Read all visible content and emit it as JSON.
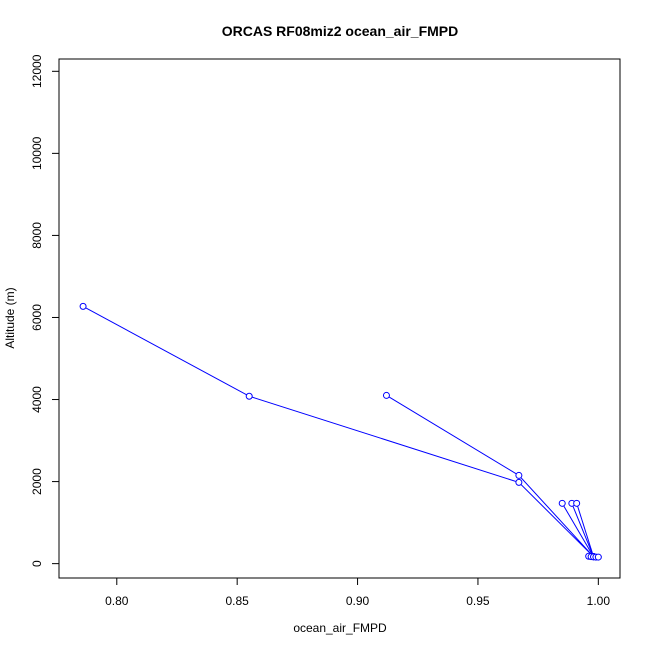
{
  "chart_data": {
    "type": "line",
    "title": "ORCAS RF08miz2 ocean_air_FMPD",
    "xlabel": "ocean_air_FMPD",
    "ylabel": "Altitude (m)",
    "xlim": [
      0.776,
      1.009
    ],
    "ylim": [
      -350,
      12300
    ],
    "x_ticks": [
      0.8,
      0.85,
      0.9,
      0.95,
      1.0
    ],
    "x_tick_labels": [
      "0.80",
      "0.85",
      "0.90",
      "0.95",
      "1.00"
    ],
    "y_ticks": [
      0,
      2000,
      4000,
      6000,
      8000,
      10000,
      12000
    ],
    "y_tick_labels": [
      "0",
      "2000",
      "4000",
      "6000",
      "8000",
      "10000",
      "12000"
    ],
    "grid": false,
    "color": "#0000ff",
    "series": [
      {
        "x": [
          0.786,
          0.855,
          0.967,
          0.998,
          0.967,
          0.912
        ],
        "y": [
          6270,
          4080,
          1980,
          170,
          2150,
          4100
        ]
      },
      {
        "x": [
          0.985,
          0.998
        ],
        "y": [
          1470,
          170
        ]
      },
      {
        "x": [
          0.989,
          0.998
        ],
        "y": [
          1470,
          170
        ]
      },
      {
        "x": [
          0.991,
          0.998
        ],
        "y": [
          1470,
          170
        ]
      },
      {
        "x": [
          0.996,
          0.997,
          0.998,
          0.999,
          1.0
        ],
        "y": [
          180,
          170,
          165,
          160,
          160
        ]
      }
    ]
  }
}
